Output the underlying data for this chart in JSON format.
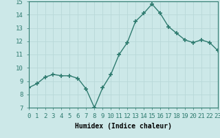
{
  "x": [
    0,
    1,
    2,
    3,
    4,
    5,
    6,
    7,
    8,
    9,
    10,
    11,
    12,
    13,
    14,
    15,
    16,
    17,
    18,
    19,
    20,
    21,
    22,
    23
  ],
  "y": [
    8.5,
    8.8,
    9.3,
    9.5,
    9.4,
    9.4,
    9.2,
    8.4,
    7.0,
    8.5,
    9.5,
    11.0,
    11.9,
    13.5,
    14.1,
    14.8,
    14.1,
    13.1,
    12.6,
    12.1,
    11.9,
    12.1,
    11.9,
    11.3
  ],
  "xlim": [
    0,
    23
  ],
  "ylim": [
    7,
    15
  ],
  "yticks": [
    7,
    8,
    9,
    10,
    11,
    12,
    13,
    14,
    15
  ],
  "xticks": [
    0,
    1,
    2,
    3,
    4,
    5,
    6,
    7,
    8,
    9,
    10,
    11,
    12,
    13,
    14,
    15,
    16,
    17,
    18,
    19,
    20,
    21,
    22,
    23
  ],
  "xlabel": "Humidex (Indice chaleur)",
  "line_color": "#2d7a6e",
  "marker": "+",
  "marker_size": 4,
  "marker_linewidth": 1.2,
  "bg_color": "#cce8e8",
  "grid_color": "#b8d8d8",
  "xlabel_fontsize": 7,
  "tick_fontsize": 6.5,
  "linewidth": 1.0
}
